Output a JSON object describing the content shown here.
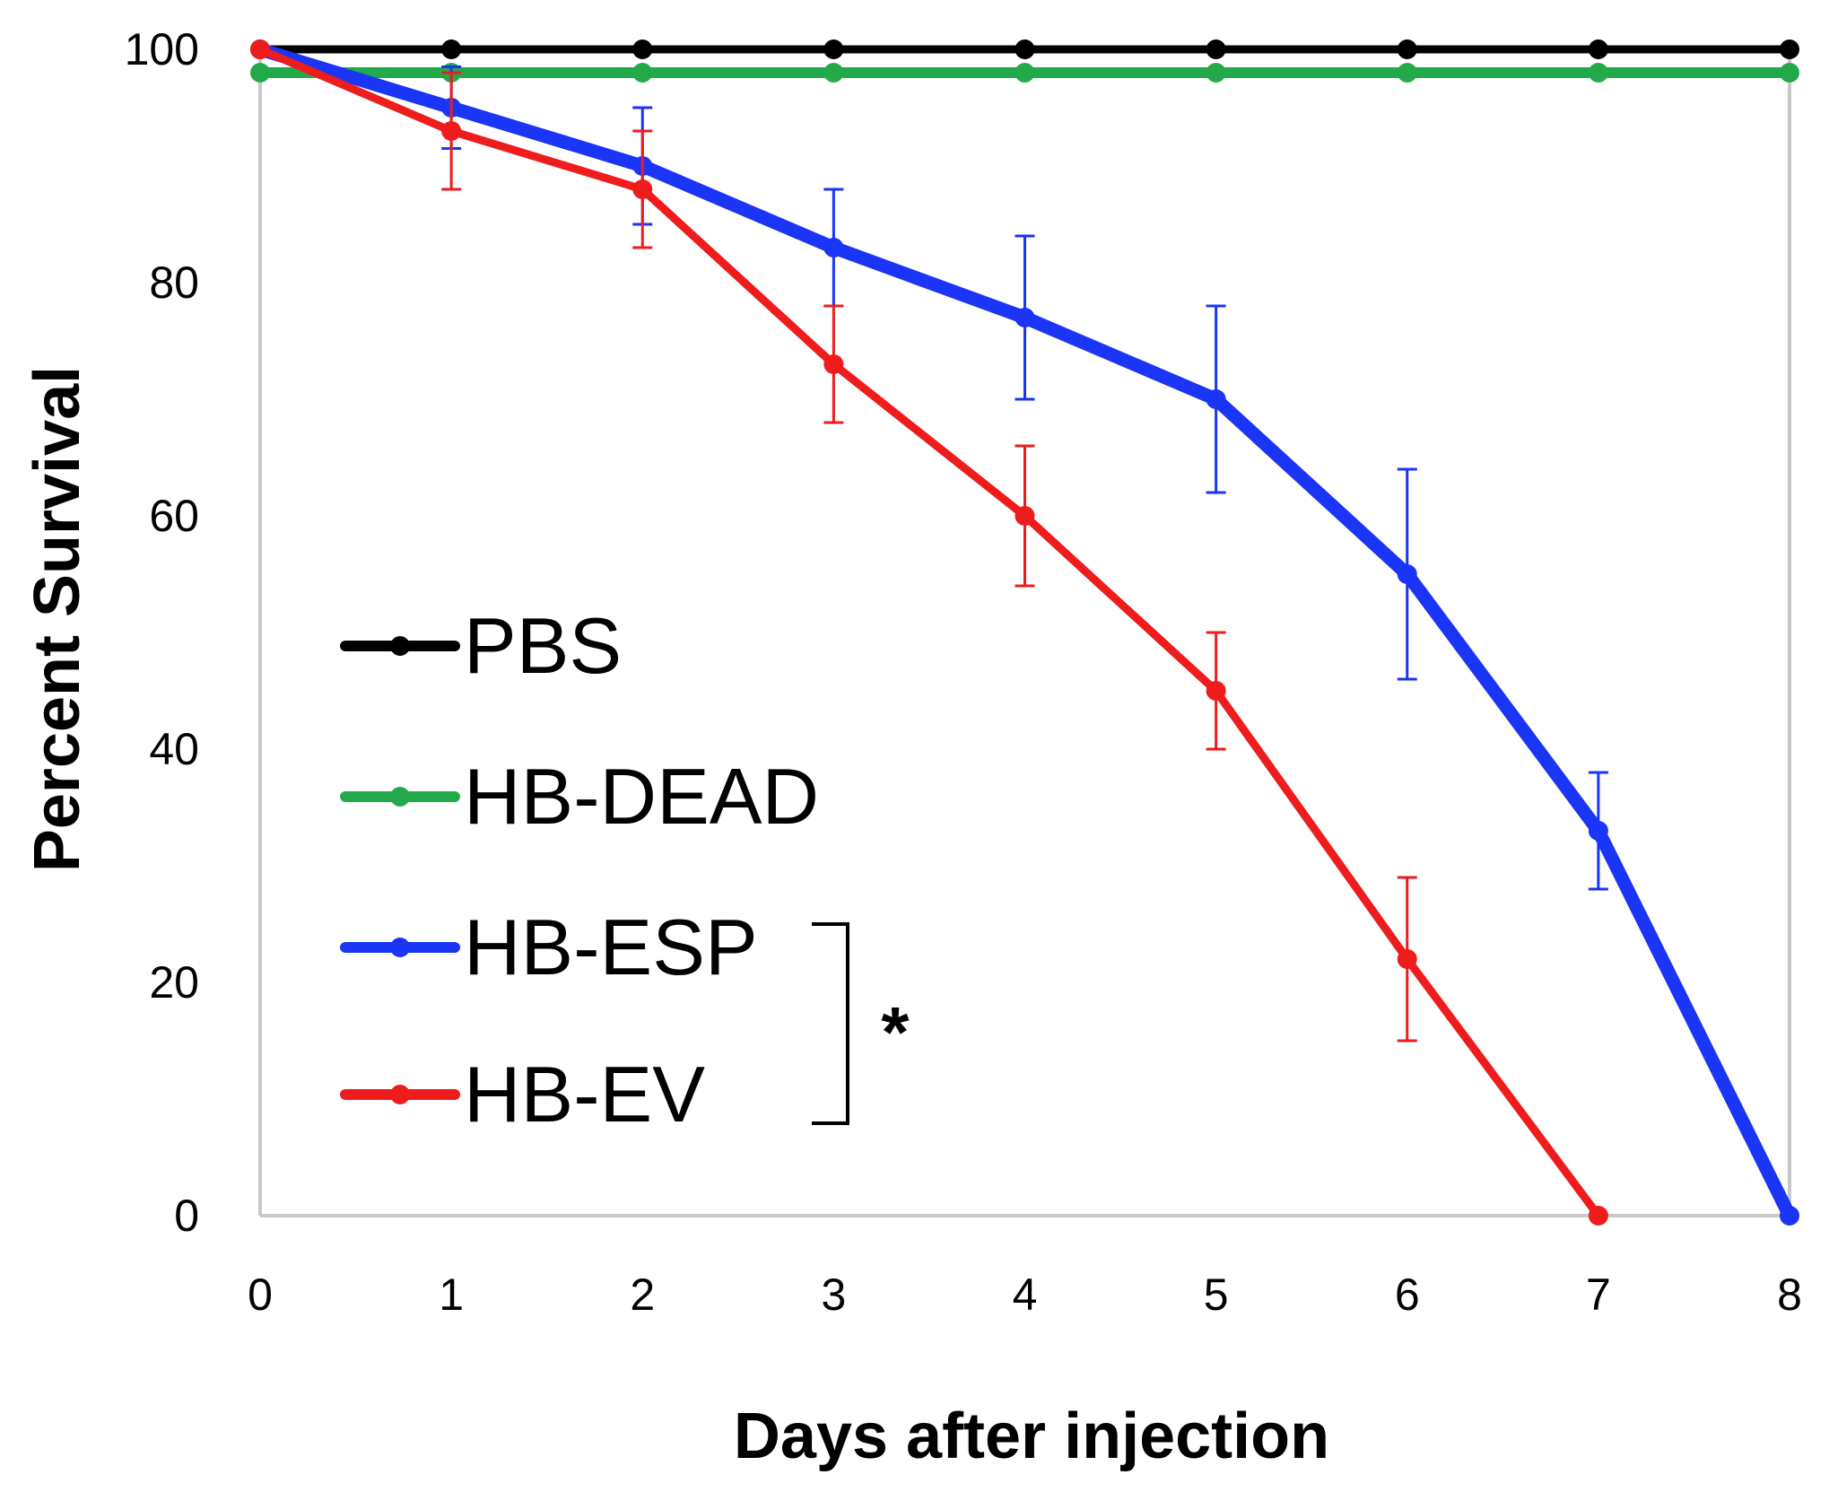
{
  "chart_data": {
    "type": "line",
    "title": "",
    "xlabel": "Days after injection",
    "ylabel": "Percent Survival",
    "x": [
      0,
      1,
      2,
      3,
      4,
      5,
      6,
      7,
      8
    ],
    "xlim": [
      0,
      8
    ],
    "ylim": [
      0,
      100
    ],
    "xticks": [
      "0",
      "1",
      "2",
      "3",
      "4",
      "5",
      "6",
      "7",
      "8"
    ],
    "yticks": [
      "0",
      "20",
      "40",
      "60",
      "80",
      "100"
    ],
    "legend_position": "lower-left",
    "series": [
      {
        "name": "PBS",
        "color": "#000000",
        "x": [
          0,
          1,
          2,
          3,
          4,
          5,
          6,
          7,
          8
        ],
        "values": [
          100,
          100,
          100,
          100,
          100,
          100,
          100,
          100,
          100
        ],
        "errors": []
      },
      {
        "name": "HB-DEAD",
        "color": "#22aa4a",
        "x": [
          0,
          1,
          2,
          3,
          4,
          5,
          6,
          7,
          8
        ],
        "values": [
          98,
          98,
          98,
          98,
          98,
          98,
          98,
          98,
          98
        ],
        "errors": []
      },
      {
        "name": "HB-ESP",
        "color": "#1a35f5",
        "x": [
          0,
          1,
          2,
          3,
          4,
          5,
          6,
          7,
          8
        ],
        "values": [
          100,
          95,
          90,
          83,
          77,
          70,
          55,
          33,
          0
        ],
        "errors": [
          0,
          3.5,
          5,
          5,
          7,
          8,
          9,
          5,
          0
        ]
      },
      {
        "name": "HB-EV",
        "color": "#ee1c1c",
        "x": [
          0,
          1,
          2,
          3,
          4,
          5,
          6,
          7
        ],
        "values": [
          100,
          93,
          88,
          73,
          60,
          45,
          22,
          0
        ],
        "errors": [
          0,
          5,
          5,
          5,
          6,
          5,
          7,
          0
        ]
      }
    ],
    "annotations": [
      {
        "text": "*",
        "between": [
          "HB-ESP",
          "HB-EV"
        ]
      }
    ]
  }
}
